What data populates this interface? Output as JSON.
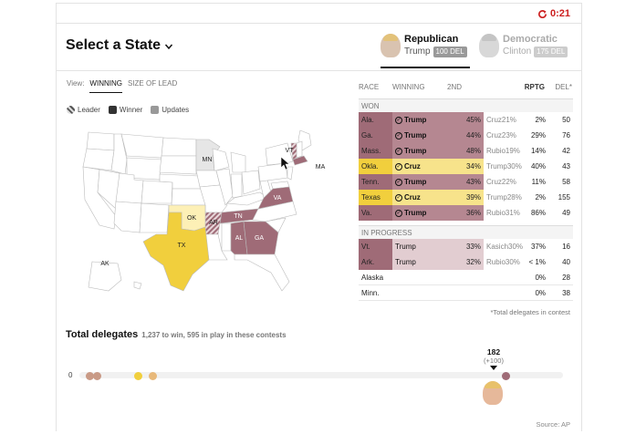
{
  "timer": {
    "icon": "refresh-icon",
    "value": "0:21"
  },
  "header": {
    "select_label": "Select a State"
  },
  "parties": {
    "rep": {
      "name": "Republican",
      "candidate": "Trump",
      "badge": "100 DEL"
    },
    "dem": {
      "name": "Democratic",
      "candidate": "Clinton",
      "badge": "175 DEL"
    }
  },
  "view": {
    "label": "View:",
    "tabs": [
      "WINNING",
      "SIZE OF LEAD"
    ]
  },
  "legend": {
    "leader": "Leader",
    "winner": "Winner",
    "updates": "Updates"
  },
  "map": {
    "labels": [
      "MN",
      "VT",
      "MA",
      "OK",
      "AR",
      "TN",
      "VA",
      "AL",
      "GA",
      "TX",
      "AK"
    ],
    "colors": {
      "trump": "#9f6b77",
      "cruz": "#f1cf3d",
      "base": "#ffffff",
      "border": "#bbbbbb"
    }
  },
  "table": {
    "headers": {
      "race": "RACE",
      "winning": "WINNING",
      "second": "2ND",
      "rptg": "RPTG",
      "del": "DEL*"
    },
    "won_label": "WON",
    "won": [
      {
        "state": "Ala.",
        "winner": "Trump",
        "pct": "45%",
        "second": "Cruz",
        "second_pct": "21%",
        "rptg": "2%",
        "del": "50",
        "cls": "trump-win"
      },
      {
        "state": "Ga.",
        "winner": "Trump",
        "pct": "44%",
        "second": "Cruz",
        "second_pct": "23%",
        "rptg": "29%",
        "del": "76",
        "cls": "trump-win"
      },
      {
        "state": "Mass.",
        "winner": "Trump",
        "pct": "48%",
        "second": "Rubio",
        "second_pct": "19%",
        "rptg": "14%",
        "del": "42",
        "cls": "trump-win"
      },
      {
        "state": "Okla.",
        "winner": "Cruz",
        "pct": "34%",
        "second": "Trump",
        "second_pct": "30%",
        "rptg": "40%",
        "del": "43",
        "cls": "cruz-win"
      },
      {
        "state": "Tenn.",
        "winner": "Trump",
        "pct": "43%",
        "second": "Cruz",
        "second_pct": "22%",
        "rptg": "11%",
        "del": "58",
        "cls": "trump-win"
      },
      {
        "state": "Texas",
        "winner": "Cruz",
        "pct": "39%",
        "second": "Trump",
        "second_pct": "28%",
        "rptg": "2%",
        "del": "155",
        "cls": "cruz-win"
      },
      {
        "state": "Va.",
        "winner": "Trump",
        "pct": "36%",
        "second": "Rubio",
        "second_pct": "31%",
        "rptg": "86%",
        "del": "49",
        "cls": "trump-win"
      }
    ],
    "progress_label": "IN PROGRESS",
    "progress": [
      {
        "state": "Vt.",
        "winner": "Trump",
        "pct": "33%",
        "second": "Kasich",
        "second_pct": "30%",
        "rptg": "37%",
        "del": "16",
        "cls": "trump-lead"
      },
      {
        "state": "Ark.",
        "winner": "Trump",
        "pct": "32%",
        "second": "Rubio",
        "second_pct": "30%",
        "rptg": "< 1%",
        "del": "40",
        "cls": "trump-lead"
      },
      {
        "state": "Alaska",
        "winner": "",
        "pct": "",
        "second": "",
        "second_pct": "",
        "rptg": "0%",
        "del": "28",
        "cls": "light"
      },
      {
        "state": "Minn.",
        "winner": "",
        "pct": "",
        "second": "",
        "second_pct": "",
        "rptg": "0%",
        "del": "38",
        "cls": "light"
      }
    ],
    "footnote": "*Total delegates in contest"
  },
  "totals": {
    "title": "Total delegates",
    "subtitle": "1,237 to win, 595 in play in these contests",
    "zero": "0",
    "leader_value": "182",
    "leader_delta": "(+100)",
    "dots": [
      {
        "color": "#c99a86",
        "value": 0.02
      },
      {
        "color": "#c99a86",
        "value": 0.035
      },
      {
        "color": "#f1cf3d",
        "value": 0.12
      },
      {
        "color": "#e8b97a",
        "value": 0.15
      },
      {
        "color": "#9f6b77",
        "value": 0.882
      }
    ]
  },
  "source": "Source: AP"
}
